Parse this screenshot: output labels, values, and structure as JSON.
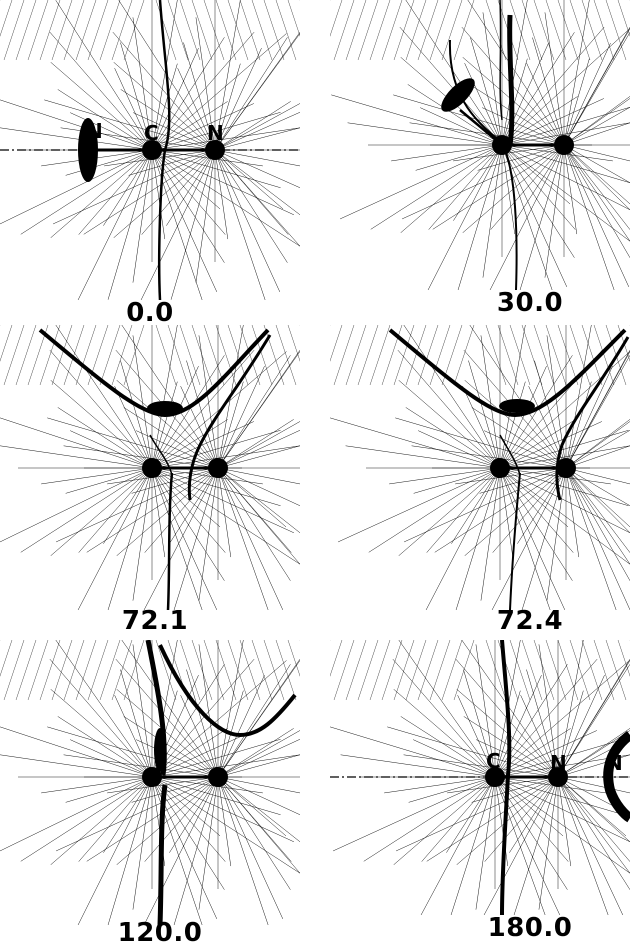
{
  "colors": {
    "ink": "#000000",
    "paper": "#ffffff"
  },
  "panels": [
    {
      "label": "0.0",
      "atom_labels": [
        "N",
        "C",
        "N"
      ],
      "angle": 0.0
    },
    {
      "label": "30.0",
      "atom_labels": [],
      "angle": 30.0
    },
    {
      "label": "72.1",
      "atom_labels": [],
      "angle": 72.1
    },
    {
      "label": "72.4",
      "atom_labels": [],
      "angle": 72.4
    },
    {
      "label": "120.0",
      "atom_labels": [],
      "angle": 120.0
    },
    {
      "label": "180.0",
      "atom_labels": [
        "C",
        "N",
        "N"
      ],
      "angle": 180.0
    }
  ]
}
